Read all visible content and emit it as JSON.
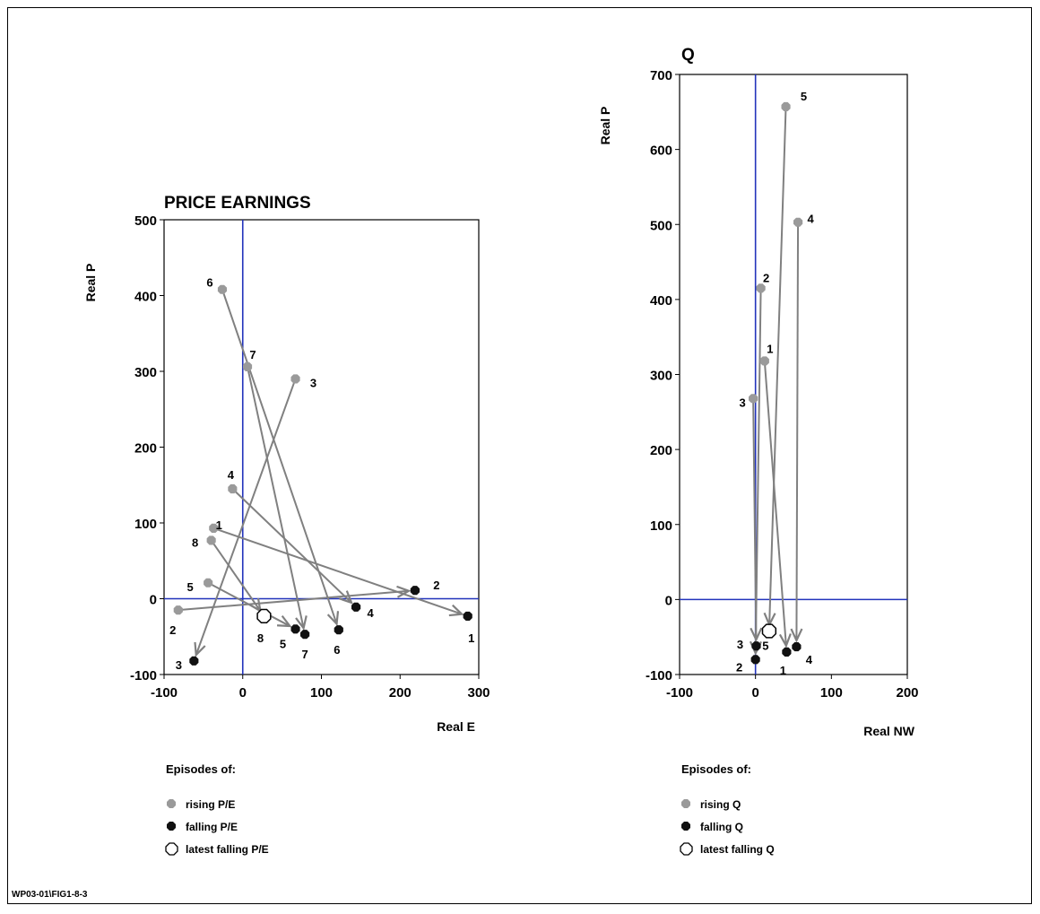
{
  "footer_code": "WP03-01\\FIG1-8-3",
  "legend_heading": "Episodes of:",
  "colors": {
    "axis_zero": "#2233bb",
    "rising": "#9a9a9a",
    "falling": "#111111",
    "arrow": "#808080"
  },
  "chart_data": [
    {
      "type": "scatter",
      "title": "PRICE EARNINGS",
      "xlabel": "Real E",
      "ylabel": "Real P",
      "xlim": [
        -100,
        300
      ],
      "ylim": [
        -100,
        500
      ],
      "xticks": [
        -100,
        0,
        100,
        200,
        300
      ],
      "yticks": [
        -100,
        0,
        100,
        200,
        300,
        400,
        500
      ],
      "grid": false,
      "legend": {
        "heading": "Episodes of:",
        "rising": "rising P/E",
        "falling": "falling P/E",
        "latest": "latest falling P/E"
      },
      "rising": [
        {
          "label": "1",
          "x": -37,
          "y": 93
        },
        {
          "label": "2",
          "x": -82,
          "y": -15
        },
        {
          "label": "3",
          "x": 67,
          "y": 290
        },
        {
          "label": "4",
          "x": -13,
          "y": 145
        },
        {
          "label": "5",
          "x": -44,
          "y": 21
        },
        {
          "label": "6",
          "x": -26,
          "y": 408
        },
        {
          "label": "7",
          "x": 6,
          "y": 306
        },
        {
          "label": "8",
          "x": -40,
          "y": 77
        }
      ],
      "falling": [
        {
          "label": "1",
          "x": 286,
          "y": -23
        },
        {
          "label": "2",
          "x": 219,
          "y": 11
        },
        {
          "label": "3",
          "x": -62,
          "y": -82
        },
        {
          "label": "4",
          "x": 144,
          "y": -11
        },
        {
          "label": "5",
          "x": 67,
          "y": -40
        },
        {
          "label": "6",
          "x": 122,
          "y": -41
        },
        {
          "label": "7",
          "x": 79,
          "y": -47
        }
      ],
      "latest": {
        "label": "8",
        "x": 27,
        "y": -23
      }
    },
    {
      "type": "scatter",
      "title": "Q",
      "xlabel": "Real NW",
      "ylabel": "Real P",
      "xlim": [
        -100,
        200
      ],
      "ylim": [
        -100,
        700
      ],
      "xticks": [
        -100,
        0,
        100,
        200
      ],
      "yticks": [
        -100,
        0,
        100,
        200,
        300,
        400,
        500,
        600,
        700
      ],
      "grid": false,
      "legend": {
        "heading": "Episodes of:",
        "rising": "rising Q",
        "falling": "falling Q",
        "latest": "latest falling Q"
      },
      "rising": [
        {
          "label": "1",
          "x": 12,
          "y": 318
        },
        {
          "label": "2",
          "x": 7,
          "y": 415
        },
        {
          "label": "3",
          "x": -3,
          "y": 268
        },
        {
          "label": "4",
          "x": 56,
          "y": 503
        },
        {
          "label": "5",
          "x": 40,
          "y": 657
        }
      ],
      "falling": [
        {
          "label": "1",
          "x": 41,
          "y": -70
        },
        {
          "label": "2",
          "x": 0,
          "y": -80
        },
        {
          "label": "3",
          "x": 1,
          "y": -62
        },
        {
          "label": "4",
          "x": 54,
          "y": -63
        }
      ],
      "latest": {
        "label": "5",
        "x": 18,
        "y": -42
      }
    }
  ]
}
